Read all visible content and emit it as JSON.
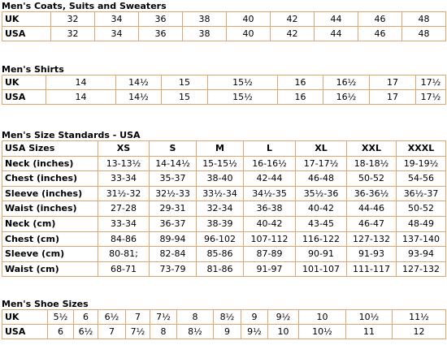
{
  "coats": {
    "title": "Men's Coats, Suits and Sweaters",
    "rows": [
      {
        "label": "UK",
        "cells": [
          "32",
          "34",
          "36",
          "38",
          "40",
          "42",
          "44",
          "46",
          "48"
        ]
      },
      {
        "label": "USA",
        "cells": [
          "32",
          "34",
          "36",
          "38",
          "40",
          "42",
          "44",
          "46",
          "48"
        ]
      }
    ]
  },
  "shirts": {
    "title": "Men's Shirts",
    "rows": [
      {
        "label": "UK",
        "cells": [
          "14",
          "14½",
          "15",
          "15½",
          "16",
          "16½",
          "17",
          "17½"
        ]
      },
      {
        "label": "USA",
        "cells": [
          "14",
          "14½",
          "15",
          "15½",
          "16",
          "16½",
          "17",
          "17½"
        ]
      }
    ]
  },
  "standards": {
    "title": "Men's Size Standards - USA",
    "rows": [
      {
        "label": "USA Sizes",
        "cells": [
          "XS",
          "S",
          "M",
          "L",
          "XL",
          "XXL",
          "XXXL"
        ]
      },
      {
        "label": "Neck (inches)",
        "cells": [
          "13-13½",
          "14-14½",
          "15-15½",
          "16-16½",
          "17-17½",
          "18-18½",
          "19-19½"
        ]
      },
      {
        "label": "Chest (inches)",
        "cells": [
          "33-34",
          "35-37",
          "38-40",
          "42-44",
          "46-48",
          "50-52",
          "54-56"
        ]
      },
      {
        "label": "Sleeve (inches)",
        "cells": [
          "31½-32",
          "32½-33",
          "33½-34",
          "34½-35",
          "35½-36",
          "36-36½",
          "36½-37"
        ]
      },
      {
        "label": "Waist (inches)",
        "cells": [
          "27-28",
          "29-31",
          "32-34",
          "36-38",
          "40-42",
          "44-46",
          "50-52"
        ]
      },
      {
        "label": "Neck (cm)",
        "cells": [
          "33-34",
          "36-37",
          "38-39",
          "40-42",
          "43-45",
          "46-47",
          "48-49"
        ]
      },
      {
        "label": "Chest (cm)",
        "cells": [
          "84-86",
          "89-94",
          "96-102",
          "107-112",
          "116-122",
          "127-132",
          "137-140"
        ]
      },
      {
        "label": "Sleeve (cm)",
        "cells": [
          "80-81;",
          "82-84",
          "85-86",
          "87-89",
          "90-91",
          "91-93",
          "93-94"
        ]
      },
      {
        "label": "Waist (cm)",
        "cells": [
          "68-71",
          "73-79",
          "81-86",
          "91-97",
          "101-107",
          "111-117",
          "127-132"
        ]
      }
    ]
  },
  "shoes": {
    "title": "Men's Shoe Sizes",
    "rows": [
      {
        "label": "UK",
        "cells": [
          "5½",
          "6",
          "6½",
          "7",
          "7½",
          "8",
          "8½",
          "9",
          "9½",
          "10",
          "10½",
          "11½"
        ]
      },
      {
        "label": "USA",
        "cells": [
          "6",
          "6½",
          "7",
          "7½",
          "8",
          "8½",
          "9",
          "9½",
          "10",
          "10½",
          "11",
          "12"
        ]
      }
    ]
  }
}
